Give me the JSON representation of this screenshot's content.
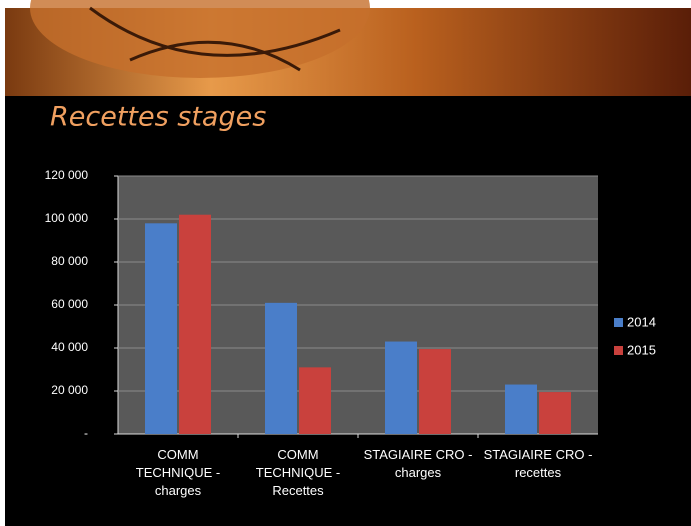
{
  "chart_data": {
    "type": "bar",
    "title": "Recettes stages",
    "categories": [
      "COMM TECHNIQUE - charges",
      "COMM TECHNIQUE - Recettes",
      "STAGIAIRE CRO - charges",
      "STAGIAIRE CRO - recettes"
    ],
    "series": [
      {
        "name": "2014",
        "color": "#4a7ec9",
        "values": [
          98000,
          61000,
          43000,
          23000
        ]
      },
      {
        "name": "2015",
        "color": "#c9413d",
        "values": [
          102000,
          31000,
          39500,
          19500
        ]
      }
    ],
    "ylim": [
      0,
      120000
    ],
    "yticks": [
      {
        "value": 0,
        "label": "-"
      },
      {
        "value": 20000,
        "label": "20 000"
      },
      {
        "value": 40000,
        "label": "40 000"
      },
      {
        "value": 60000,
        "label": "60 000"
      },
      {
        "value": 80000,
        "label": "80 000"
      },
      {
        "value": 100000,
        "label": "100 000"
      },
      {
        "value": 120000,
        "label": "120 000"
      }
    ],
    "grid": true,
    "legend": "right"
  }
}
